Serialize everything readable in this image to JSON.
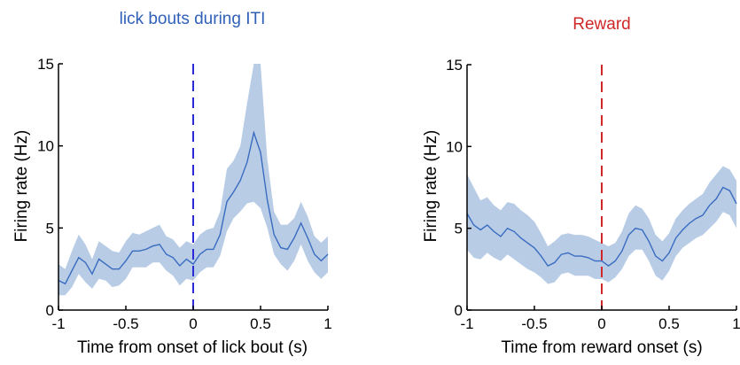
{
  "chart_data": [
    {
      "type": "line",
      "title": "lick bouts during ITI",
      "title_color": "#3060b8",
      "xlabel": "Time from onset of lick bout (s)",
      "ylabel": "Firing rate (Hz)",
      "xlim": [
        -1,
        1
      ],
      "ylim": [
        0,
        15
      ],
      "xticks": [
        -1,
        -0.5,
        0,
        0.5,
        1
      ],
      "xtick_labels": [
        "-1",
        "-0.5",
        "0",
        "0.5",
        "1"
      ],
      "yticks": [
        0,
        5,
        10,
        15
      ],
      "ytick_labels": [
        "0",
        "5",
        "10",
        "15"
      ],
      "grid": false,
      "marker_line": {
        "x": 0,
        "color": "#2b2bd6",
        "style": "dashed"
      },
      "series": [
        {
          "color": "#3a6cc0",
          "band_color": "#b8cce6",
          "x": [
            -1.0,
            -0.95,
            -0.9,
            -0.85,
            -0.8,
            -0.75,
            -0.7,
            -0.65,
            -0.6,
            -0.55,
            -0.5,
            -0.45,
            -0.4,
            -0.35,
            -0.3,
            -0.25,
            -0.2,
            -0.15,
            -0.1,
            -0.05,
            0.0,
            0.05,
            0.1,
            0.15,
            0.2,
            0.25,
            0.3,
            0.35,
            0.4,
            0.45,
            0.5,
            0.55,
            0.6,
            0.65,
            0.7,
            0.75,
            0.8,
            0.85,
            0.9,
            0.95,
            1.0
          ],
          "mean": [
            1.8,
            1.6,
            2.4,
            3.2,
            2.9,
            2.2,
            3.1,
            2.8,
            2.5,
            2.5,
            3.0,
            3.6,
            3.6,
            3.7,
            3.9,
            4.0,
            3.4,
            3.2,
            2.7,
            3.1,
            2.8,
            3.4,
            3.7,
            3.7,
            4.6,
            6.6,
            7.2,
            7.9,
            9.0,
            10.8,
            9.6,
            6.7,
            4.6,
            3.8,
            3.7,
            4.4,
            5.3,
            4.4,
            3.4,
            3.0,
            3.4
          ],
          "lower": [
            0.9,
            0.9,
            1.4,
            2.2,
            1.7,
            1.3,
            1.9,
            1.8,
            1.4,
            1.5,
            1.9,
            2.6,
            2.6,
            2.6,
            2.9,
            2.9,
            2.4,
            2.1,
            1.5,
            1.9,
            1.8,
            2.3,
            2.6,
            2.6,
            3.3,
            4.8,
            5.6,
            6.0,
            6.5,
            6.6,
            6.2,
            5.0,
            3.4,
            2.8,
            2.4,
            3.0,
            4.0,
            3.0,
            2.3,
            1.9,
            2.3
          ],
          "upper": [
            2.8,
            2.5,
            3.6,
            4.6,
            4.0,
            3.1,
            4.2,
            3.9,
            3.6,
            3.5,
            4.2,
            4.7,
            4.6,
            4.8,
            5.0,
            5.2,
            4.5,
            4.3,
            3.8,
            4.2,
            4.0,
            4.6,
            4.9,
            5.0,
            6.0,
            8.6,
            9.1,
            10.0,
            12.6,
            15.0,
            15.0,
            9.2,
            6.0,
            5.2,
            5.2,
            5.6,
            6.6,
            5.7,
            4.5,
            4.1,
            4.5
          ]
        }
      ]
    },
    {
      "type": "line",
      "title": "Reward",
      "title_color": "#d02828",
      "xlabel": "Time from reward onset (s)",
      "ylabel": "Firing rate (Hz)",
      "xlim": [
        -1,
        1
      ],
      "ylim": [
        0,
        15
      ],
      "xticks": [
        -1,
        -0.5,
        0,
        0.5,
        1
      ],
      "xtick_labels": [
        "-1",
        "-0.5",
        "0",
        "0.5",
        "1"
      ],
      "yticks": [
        0,
        5,
        10,
        15
      ],
      "ytick_labels": [
        "0",
        "5",
        "10",
        "15"
      ],
      "grid": false,
      "marker_line": {
        "x": 0,
        "color": "#d02828",
        "style": "dashed"
      },
      "series": [
        {
          "color": "#3a6cc0",
          "band_color": "#b8cce6",
          "x": [
            -1.0,
            -0.95,
            -0.9,
            -0.85,
            -0.8,
            -0.75,
            -0.7,
            -0.65,
            -0.6,
            -0.55,
            -0.5,
            -0.45,
            -0.4,
            -0.35,
            -0.3,
            -0.25,
            -0.2,
            -0.15,
            -0.1,
            -0.05,
            0.0,
            0.05,
            0.1,
            0.15,
            0.2,
            0.25,
            0.3,
            0.35,
            0.4,
            0.45,
            0.5,
            0.55,
            0.6,
            0.65,
            0.7,
            0.75,
            0.8,
            0.85,
            0.9,
            0.95,
            1.0
          ],
          "mean": [
            5.9,
            5.2,
            4.9,
            5.2,
            4.8,
            4.5,
            5.0,
            4.8,
            4.4,
            4.1,
            3.8,
            3.3,
            2.7,
            2.9,
            3.4,
            3.5,
            3.3,
            3.3,
            3.2,
            3.0,
            3.0,
            2.7,
            3.0,
            3.6,
            4.6,
            5.0,
            4.9,
            4.2,
            3.3,
            3.0,
            3.5,
            4.4,
            4.9,
            5.3,
            5.6,
            5.8,
            6.4,
            6.8,
            7.5,
            7.3,
            6.5
          ],
          "lower": [
            3.7,
            3.2,
            3.1,
            3.5,
            3.2,
            3.0,
            3.4,
            3.1,
            2.8,
            2.5,
            2.3,
            2.0,
            1.6,
            1.7,
            2.2,
            2.3,
            2.1,
            2.1,
            2.1,
            1.9,
            1.9,
            1.7,
            2.0,
            2.5,
            3.3,
            3.7,
            3.7,
            3.0,
            2.1,
            1.8,
            2.4,
            3.3,
            3.8,
            4.1,
            4.4,
            4.6,
            5.0,
            5.4,
            6.0,
            5.8,
            5.0
          ],
          "upper": [
            8.3,
            7.5,
            6.7,
            6.9,
            6.4,
            6.1,
            6.6,
            6.5,
            6.1,
            5.8,
            5.4,
            4.7,
            3.9,
            4.2,
            4.6,
            4.7,
            4.6,
            4.6,
            4.5,
            4.3,
            4.1,
            3.9,
            4.1,
            4.8,
            5.9,
            6.4,
            6.2,
            5.6,
            4.6,
            4.2,
            4.7,
            5.6,
            6.1,
            6.5,
            6.8,
            7.1,
            7.8,
            8.3,
            8.8,
            8.6,
            7.9
          ]
        }
      ]
    }
  ]
}
